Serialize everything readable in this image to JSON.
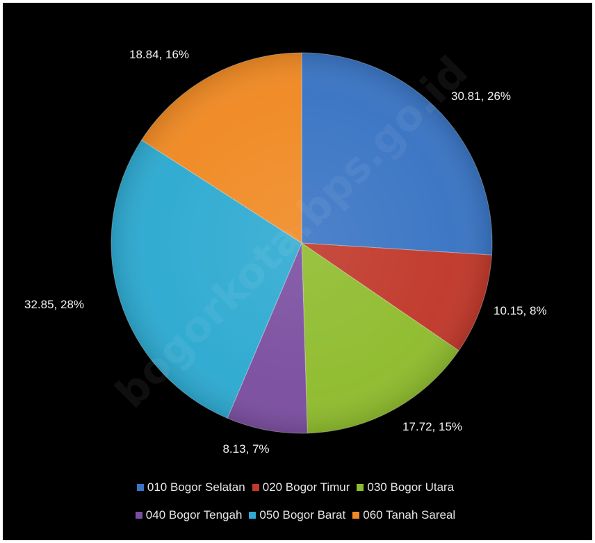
{
  "chart_data": {
    "type": "pie",
    "start_angle_deg": 0,
    "direction": "clockwise",
    "slices": [
      {
        "name": "010 Bogor Selatan",
        "value": 30.81,
        "percent": "26%",
        "label": "30.81, 26%",
        "color": "#3a75c4"
      },
      {
        "name": "020 Bogor Timur",
        "value": 10.15,
        "percent": "8%",
        "label": "10.15, 8%",
        "color": "#c0392b"
      },
      {
        "name": "030 Bogor Utara",
        "value": 17.72,
        "percent": "15%",
        "label": "17.72, 15%",
        "color": "#8fbc2e"
      },
      {
        "name": "040 Bogor Tengah",
        "value": 8.13,
        "percent": "7%",
        "label": "8.13, 7%",
        "color": "#7b4fa0"
      },
      {
        "name": "050 Bogor Barat",
        "value": 32.85,
        "percent": "28%",
        "label": "32.85, 28%",
        "color": "#2eaad1"
      },
      {
        "name": "060 Tanah Sareal",
        "value": 18.84,
        "percent": "16%",
        "label": "18.84, 16%",
        "color": "#f08a24"
      }
    ],
    "legend_position": "bottom"
  },
  "watermark": "bogorkota.bps.go.id"
}
